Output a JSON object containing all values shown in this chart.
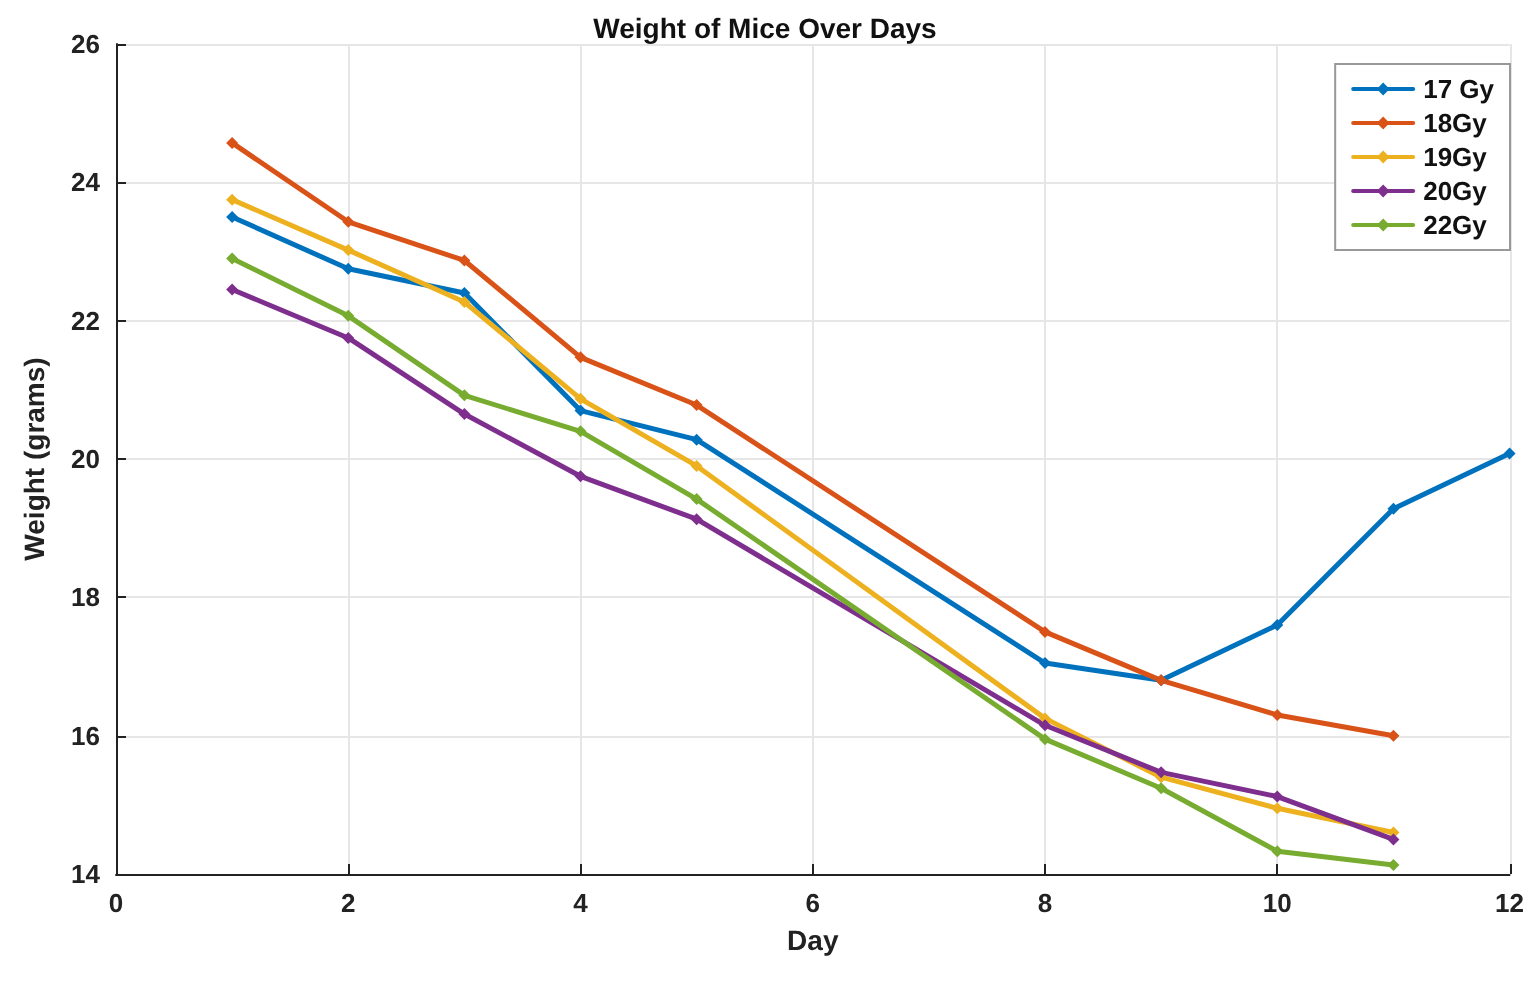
{
  "chart_data": {
    "type": "line",
    "title": "Weight of Mice Over Days",
    "xlabel": "Day",
    "ylabel": "Weight (grams)",
    "xlim": [
      0,
      12
    ],
    "xticks": [
      0,
      2,
      4,
      6,
      8,
      10,
      12
    ],
    "ylim": [
      14,
      26
    ],
    "yticks": [
      14,
      16,
      18,
      20,
      22,
      24,
      26
    ],
    "grid": true,
    "legend": "top right",
    "marker": "diamond",
    "line_style": "solid",
    "series": [
      {
        "name": "17 Gy",
        "color": "#0072bd",
        "x": [
          1,
          2,
          3,
          4,
          5,
          8,
          9,
          10,
          11,
          12
        ],
        "values": [
          23.5,
          22.75,
          22.4,
          20.7,
          20.28,
          17.05,
          16.8,
          17.6,
          19.28,
          20.08
        ]
      },
      {
        "name": "18Gy",
        "color": "#d95319",
        "x": [
          1,
          2,
          3,
          4,
          5,
          8,
          9,
          10,
          11
        ],
        "values": [
          24.57,
          23.43,
          22.87,
          21.47,
          20.78,
          17.5,
          16.8,
          16.3,
          16.0
        ]
      },
      {
        "name": "19Gy",
        "color": "#edb120",
        "x": [
          1,
          2,
          3,
          4,
          5,
          8,
          9,
          10,
          11
        ],
        "values": [
          23.75,
          23.02,
          22.27,
          20.87,
          19.9,
          16.25,
          15.4,
          14.95,
          14.6
        ]
      },
      {
        "name": "20Gy",
        "color": "#7e2f8e",
        "x": [
          1,
          2,
          3,
          4,
          5,
          8,
          9,
          10,
          11
        ],
        "values": [
          22.45,
          21.75,
          20.65,
          19.75,
          19.13,
          16.15,
          15.47,
          15.12,
          14.5
        ]
      },
      {
        "name": "22Gy",
        "color": "#77ac30",
        "x": [
          1,
          2,
          3,
          4,
          5,
          8,
          9,
          10,
          11
        ],
        "values": [
          22.9,
          22.07,
          20.92,
          20.4,
          19.42,
          15.95,
          15.24,
          14.33,
          14.13
        ]
      }
    ]
  }
}
